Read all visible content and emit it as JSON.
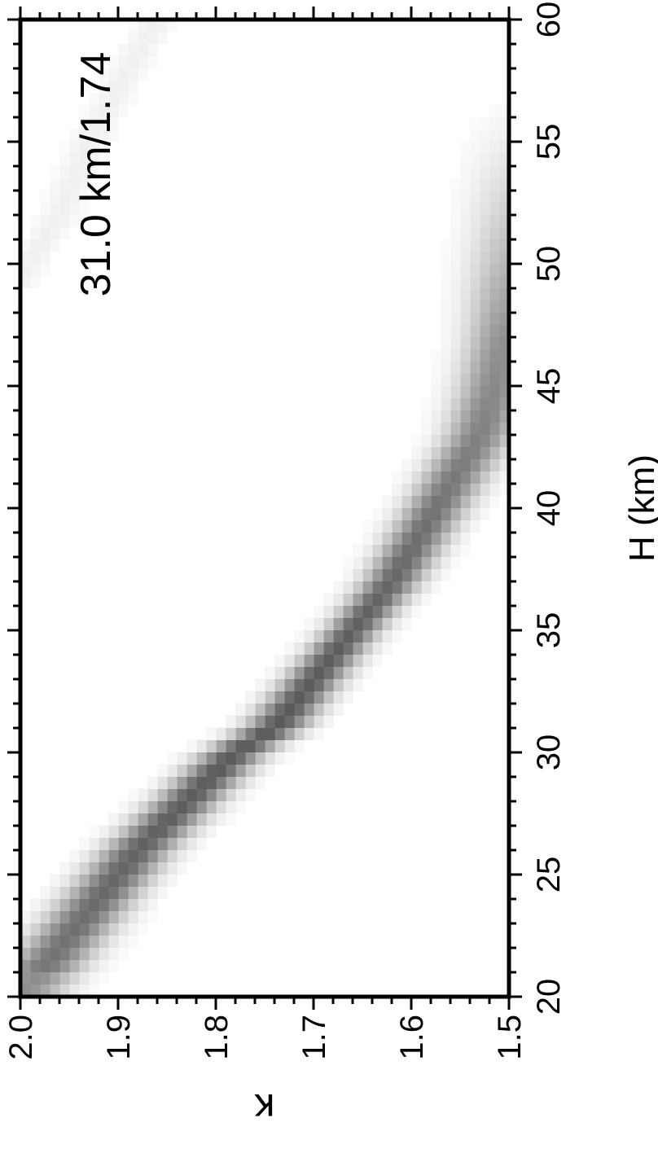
{
  "chart_data": {
    "type": "heatmap",
    "rotation": "rotated 90 degrees counter-clockwise (portrait page)",
    "annotation": "31.0 km/1.74",
    "xlabel": "H (km)",
    "ylabel": "κ",
    "xlim": [
      20,
      60
    ],
    "ylim": [
      1.5,
      2.0
    ],
    "x_ticks": [
      "20",
      "25",
      "30",
      "35",
      "40",
      "45",
      "50",
      "55",
      "60"
    ],
    "y_ticks": [
      "1.5",
      "1.6",
      "1.7",
      "1.8",
      "1.9",
      "2.0"
    ],
    "colormap": "white-to-gray (max #5a5a5a)",
    "main_ridge": {
      "description": "H-kappa stacking amplitude maximum along a curved band",
      "points": [
        {
          "H": 20.5,
          "k": 1.99
        },
        {
          "H": 22,
          "k": 1.96
        },
        {
          "H": 24,
          "k": 1.92
        },
        {
          "H": 26,
          "k": 1.88
        },
        {
          "H": 28,
          "k": 1.83
        },
        {
          "H": 30,
          "k": 1.78
        },
        {
          "H": 31,
          "k": 1.74
        },
        {
          "H": 33,
          "k": 1.7
        },
        {
          "H": 35,
          "k": 1.66
        },
        {
          "H": 37,
          "k": 1.62
        },
        {
          "H": 39,
          "k": 1.59
        },
        {
          "H": 41,
          "k": 1.56
        },
        {
          "H": 43,
          "k": 1.53
        },
        {
          "H": 45,
          "k": 1.515
        },
        {
          "H": 47,
          "k": 1.505
        },
        {
          "H": 50,
          "k": 1.5
        }
      ],
      "peak": {
        "H": 31.0,
        "k": 1.74
      }
    },
    "secondary_ridge": {
      "description": "faint secondary band at upper right",
      "points": [
        {
          "H": 49.5,
          "k": 2.0
        },
        {
          "H": 52,
          "k": 1.96
        },
        {
          "H": 55,
          "k": 1.93
        },
        {
          "H": 58,
          "k": 1.89
        },
        {
          "H": 60,
          "k": 1.86
        }
      ]
    }
  }
}
